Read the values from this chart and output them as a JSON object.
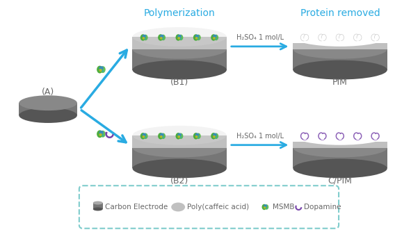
{
  "bg_color": "#ffffff",
  "arrow_color": "#29ABE2",
  "text_color_dark": "#666666",
  "text_color_blue": "#29ABE2",
  "electrode_dark": "#767676",
  "electrode_mid": "#888888",
  "electrode_light": "#AAAAAA",
  "poly_color": "#C0C0C0",
  "poly_light": "#D8D8D8",
  "legend_border_color": "#7FCCCC",
  "dopamine_color": "#7744AA",
  "protein_green": "#55AA33",
  "protein_blue": "#3377BB",
  "protein_yellow": "#BBAA22",
  "protein_teal": "#44AAAA",
  "label_A": "(A)",
  "label_B1": "(B1)",
  "label_B2": "(B2)",
  "label_PIM": "PIM",
  "label_CPIM": "C/PIM",
  "label_poly": "Polymerization",
  "label_protein": "Protein removed",
  "arrow_label": "H₂SO₄ 1 mol/L",
  "legend_items": [
    "Carbon Electrode",
    "Poly(caffeic acid)",
    "MSMB",
    "Dopamine"
  ]
}
